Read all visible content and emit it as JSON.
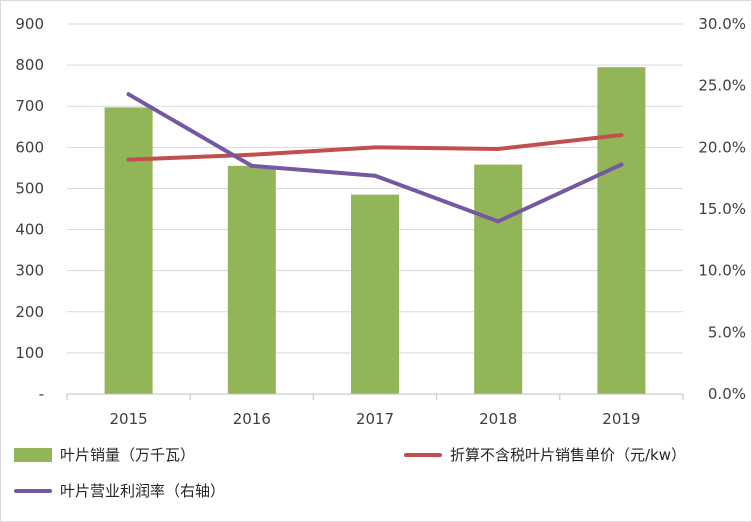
{
  "chart_data": {
    "type": "bar+line",
    "categories": [
      "2015",
      "2016",
      "2017",
      "2018",
      "2019"
    ],
    "left_axis": {
      "ticks": [
        "-",
        "100",
        "200",
        "300",
        "400",
        "500",
        "600",
        "700",
        "800",
        "900"
      ],
      "ylim": [
        0,
        900
      ]
    },
    "right_axis": {
      "ticks": [
        "0.0%",
        "5.0%",
        "10.0%",
        "15.0%",
        "20.0%",
        "25.0%",
        "30.0%"
      ],
      "ylim": [
        0,
        30
      ]
    },
    "grid": true,
    "legend_position": "bottom",
    "series": [
      {
        "name": "叶片销量（万千瓦）",
        "type": "bar",
        "axis": "left",
        "color": "#92b657",
        "values": [
          697,
          555,
          485,
          558,
          795
        ]
      },
      {
        "name": "折算不含税叶片销售单价（元/kw）",
        "type": "line",
        "axis": "left",
        "color": "#c0504d",
        "values": [
          570,
          582,
          600,
          596,
          630
        ]
      },
      {
        "name": "叶片营业利润率（右轴）",
        "type": "line",
        "axis": "right",
        "color": "#7559a0",
        "values": [
          24.3,
          18.5,
          17.7,
          14.0,
          18.6
        ]
      }
    ]
  }
}
